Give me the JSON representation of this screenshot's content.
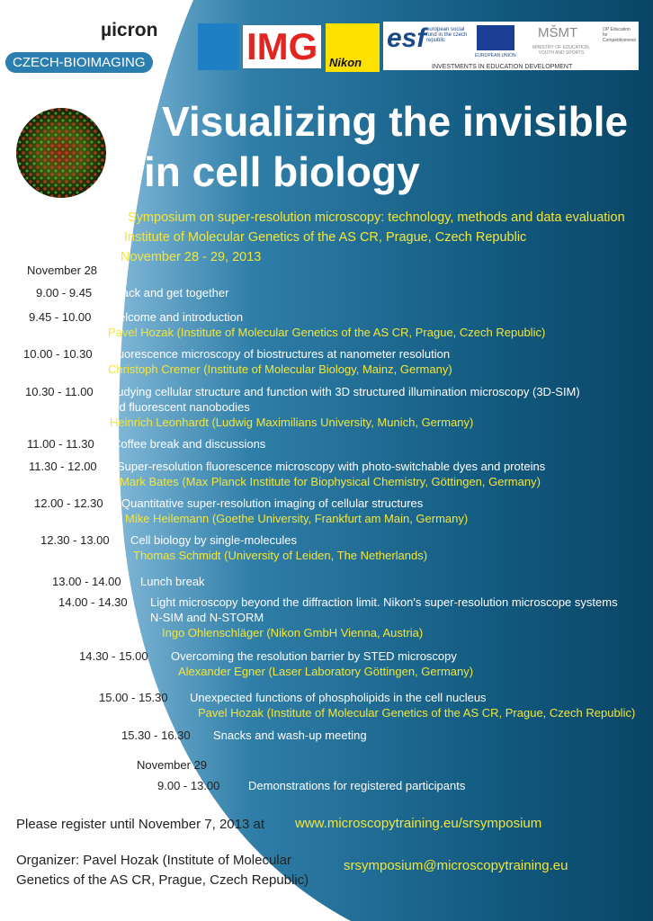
{
  "header": {
    "micron": "µicron",
    "czech_bioimaging": "CZECH-BIOIMAGING",
    "img": "IMG",
    "nikon": "Nikon",
    "esf": "esf",
    "esf_text": "european social fund in the czech republic",
    "eu": "EUROPEAN UNION",
    "msmt": "MŠMT",
    "ministry": "MINISTRY OF EDUCATION, YOUTH AND SPORTS",
    "op": "OP Education for Competitiveness",
    "investments": "INVESTMENTS IN EDUCATION DEVELOPMENT"
  },
  "title": [
    "Visualizing the invisible",
    "in cell biology"
  ],
  "subtitle": [
    "Symposium on super-resolution microscopy: technology, methods and data evaluation",
    "Institute of Molecular Genetics of the AS CR, Prague, Czech Republic",
    "November 28 - 29, 2013"
  ],
  "days": [
    {
      "day": "November 28",
      "items": [
        {
          "time": "9.00 - 9.45",
          "topic": [
            "Snack and get together"
          ]
        },
        {
          "time": "9.45 - 10.00",
          "topic": [
            "Welcome and introduction"
          ],
          "speaker": "Pavel Hozak (Institute of Molecular Genetics of the AS CR, Prague, Czech Republic)"
        },
        {
          "time": "10.00 - 10.30",
          "topic": [
            "Fluorescence microscopy of biostructures at nanometer resolution"
          ],
          "speaker": "Christoph Cremer (Institute of Molecular Biology, Mainz, Germany)"
        },
        {
          "time": "10.30 - 11.00",
          "topic": [
            "Studying cellular structure and function with 3D structured illumination microscopy (3D-SIM)",
            "and fluorescent nanobodies"
          ],
          "speaker": "Heinrich Leonhardt (Ludwig Maximilians University, Munich, Germany)"
        },
        {
          "time": "11.00 - 11.30",
          "topic": [
            "Coffee break and discussions"
          ]
        },
        {
          "time": "11.30 - 12.00",
          "topic": [
            "Super-resolution fluorescence microscopy with photo-switchable dyes and proteins"
          ],
          "speaker": "Mark Bates (Max Planck Institute for Biophysical Chemistry, Göttingen, Germany)"
        },
        {
          "time": "12.00 - 12.30",
          "topic": [
            "Quantitative super-resolution imaging of cellular structures"
          ],
          "speaker": "Mike Heilemann (Goethe University, Frankfurt am Main, Germany)"
        },
        {
          "time": "12.30 - 13.00",
          "topic": [
            "Cell biology by single-molecules"
          ],
          "speaker": "Thomas Schmidt (University of Leiden, The Netherlands)"
        },
        {
          "time": "13.00 - 14.00",
          "topic": [
            "Lunch break"
          ]
        },
        {
          "time": "14.00 - 14.30",
          "topic": [
            "Light microscopy beyond the diffraction limit. Nikon's super-resolution microscope systems",
            "N-SIM and N-STORM"
          ],
          "speaker": "Ingo Ohlenschläger (Nikon GmbH Vienna, Austria)"
        },
        {
          "time": "14.30 - 15.00",
          "topic": [
            "Overcoming the resolution barrier by STED microscopy"
          ],
          "speaker": "Alexander Egner (Laser Laboratory Göttingen, Germany)"
        },
        {
          "time": "15.00 - 15.30",
          "topic": [
            "Unexpected functions of phospholipids in the cell nucleus"
          ],
          "speaker": "Pavel Hozak (Institute of Molecular Genetics of the AS CR, Prague, Czech Republic)"
        },
        {
          "time": "15.30 - 16.30",
          "topic": [
            "Snacks and wash-up meeting"
          ]
        }
      ]
    },
    {
      "day": "November 29",
      "items": [
        {
          "time": "9.00 - 13.00",
          "topic": [
            "Demonstrations for registered participants"
          ]
        }
      ]
    }
  ],
  "footer": {
    "register": "Please register until November 7, 2013 at",
    "url": "www.microscopytraining.eu/srsymposium",
    "organizer": [
      "Organizer: Pavel Hozak (Institute of Molecular",
      "Genetics of the AS CR, Prague, Czech Republic)"
    ],
    "email": "srsymposium@microscopytraining.eu"
  }
}
